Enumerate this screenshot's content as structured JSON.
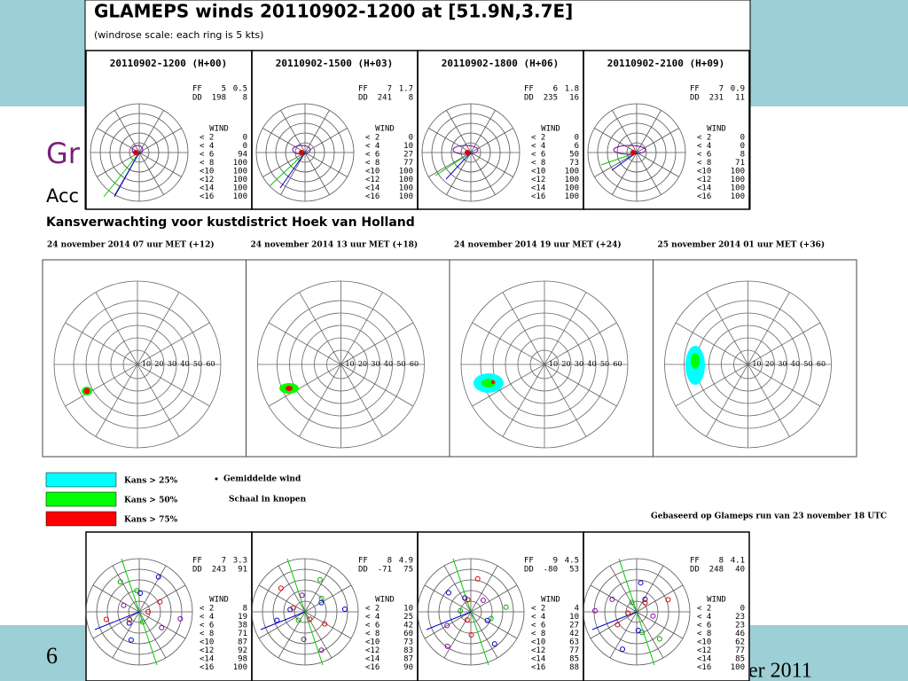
{
  "slide": {
    "heading": "Gr",
    "subheading": "Acc",
    "page_number": "6",
    "footer": "ber 2011"
  },
  "top_figure": {
    "title": "GLAMEPS winds 20110902-1200 at [51.9N,3.7E]",
    "subtitle": "(windrose scale: each ring is 5 kts)",
    "labels": {
      "ff": "FF",
      "dd": "DD",
      "wind": "WIND"
    },
    "wind_classes": [
      "< 2",
      "< 4",
      "< 6",
      "< 8",
      "<10",
      "<12",
      "<14",
      "<16"
    ],
    "panels": [
      {
        "title": "20110902-1200 (H+00)",
        "ff": [
          5,
          0.5
        ],
        "dd": [
          198,
          8
        ],
        "wind": [
          0,
          0,
          94,
          100,
          100,
          100,
          100,
          100
        ]
      },
      {
        "title": "20110902-1500 (H+03)",
        "ff": [
          7,
          1.7
        ],
        "dd": [
          241,
          8
        ],
        "wind": [
          0,
          10,
          27,
          77,
          100,
          100,
          100,
          100
        ]
      },
      {
        "title": "20110902-1800 (H+06)",
        "ff": [
          6,
          1.8
        ],
        "dd": [
          235,
          16
        ],
        "wind": [
          0,
          6,
          50,
          73,
          100,
          100,
          100,
          100
        ]
      },
      {
        "title": "20110902-2100 (H+09)",
        "ff": [
          7,
          0.9
        ],
        "dd": [
          231,
          11
        ],
        "wind": [
          0,
          0,
          8,
          71,
          100,
          100,
          100,
          100
        ]
      }
    ]
  },
  "middle_figure": {
    "title": "Kansverwachting voor kustdistrict Hoek van Holland",
    "panels": [
      "24 november 2014 07 uur MET (+12)",
      "24 november 2014 13 uur MET (+18)",
      "24 november 2014 19 uur MET (+24)",
      "25 november 2014 01 uur MET (+36)"
    ],
    "ring_labels": [
      "10",
      "20",
      "30",
      "40",
      "50",
      "60"
    ],
    "legend": [
      {
        "label": "Kans > 25%",
        "color": "#00ffff"
      },
      {
        "label": "Kans > 50%",
        "color": "#00ff00"
      },
      {
        "label": "Kans > 75%",
        "color": "#ff0000"
      }
    ],
    "mean_wind": "Gemiddelde wind",
    "scale_note": "Schaal in knopen",
    "source": "Gebaseerd op Glameps run van 23 november 18 UTC"
  },
  "bottom_figure": {
    "labels": {
      "ff": "FF",
      "dd": "DD",
      "wind": "WIND"
    },
    "wind_classes": [
      "< 2",
      "< 4",
      "< 6",
      "< 8",
      "<10",
      "<12",
      "<14",
      "<16"
    ],
    "panels": [
      {
        "ff": [
          7,
          3.3
        ],
        "dd": [
          243,
          91
        ],
        "wind": [
          8,
          19,
          38,
          71,
          87,
          92,
          98,
          100
        ]
      },
      {
        "ff": [
          8,
          4.9
        ],
        "dd": [
          -71,
          75
        ],
        "wind": [
          10,
          25,
          42,
          60,
          73,
          83,
          87,
          90
        ]
      },
      {
        "ff": [
          9,
          4.5
        ],
        "dd": [
          -80,
          53
        ],
        "wind": [
          4,
          10,
          27,
          42,
          63,
          77,
          85,
          88
        ]
      },
      {
        "ff": [
          8,
          4.1
        ],
        "dd": [
          248,
          40
        ],
        "wind": [
          0,
          23,
          23,
          46,
          62,
          77,
          85,
          100
        ]
      }
    ]
  }
}
